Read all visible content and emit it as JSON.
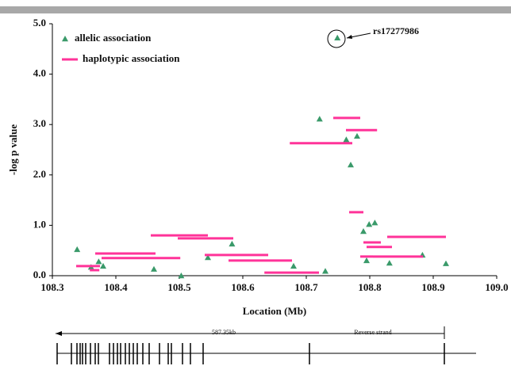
{
  "chart_data": {
    "type": "scatter",
    "xlabel": "Location (Mb)",
    "ylabel": "-log p value",
    "xlim": [
      108.3,
      109.0
    ],
    "ylim": [
      0,
      5
    ],
    "xticks": [
      108.3,
      108.4,
      108.5,
      108.6,
      108.7,
      108.8,
      108.9,
      {
        "value": 109,
        "label": "109.0"
      }
    ],
    "yticks": [
      {
        "value": 0,
        "label": "0.0"
      },
      {
        "value": 1,
        "label": "1.0"
      },
      {
        "value": 2,
        "label": "2.0"
      },
      {
        "value": 3,
        "label": "3.0"
      },
      {
        "value": 4,
        "label": "4.0"
      },
      {
        "value": 5,
        "label": "5.0"
      }
    ],
    "series": [
      {
        "name": "allelic association",
        "color": "#3a9a6a",
        "x": [
          108.339,
          108.361,
          108.373,
          108.38,
          108.46,
          108.503,
          108.545,
          108.583,
          108.68,
          108.73,
          108.721,
          108.749,
          108.763,
          108.78,
          108.77,
          108.79,
          108.799,
          108.808,
          108.795,
          108.831,
          108.883,
          108.92
        ],
        "values": [
          0.52,
          0.17,
          0.28,
          0.19,
          0.13,
          0.0,
          0.36,
          0.63,
          0.19,
          0.09,
          3.11,
          4.72,
          2.7,
          2.77,
          2.2,
          0.88,
          1.02,
          1.05,
          0.3,
          0.25,
          0.41,
          0.24
        ]
      },
      {
        "name": "haplotypic association",
        "color": "#ff3399",
        "x_start": [
          108.7425,
          108.7625,
          108.674,
          108.7675,
          108.455,
          108.4975,
          108.3675,
          108.3775,
          108.54,
          108.5775,
          108.3375,
          108.359,
          108.634,
          108.8275,
          108.79,
          108.795,
          108.785,
          108.805
        ],
        "x_end": [
          108.785,
          108.8115,
          108.7725,
          108.79,
          108.545,
          108.585,
          108.4625,
          108.5015,
          108.64,
          108.6775,
          108.375,
          108.374,
          108.72,
          108.92,
          108.8175,
          108.835,
          108.805,
          108.884
        ],
        "values": [
          3.13,
          2.89,
          2.63,
          1.26,
          0.8,
          0.74,
          0.44,
          0.35,
          0.41,
          0.3,
          0.19,
          0.11,
          0.06,
          0.77,
          0.66,
          0.57,
          0.38,
          0.38
        ]
      }
    ],
    "annotation": "rs17277986",
    "track_length": "587.35kb",
    "track_strand": "Reverse strand"
  }
}
